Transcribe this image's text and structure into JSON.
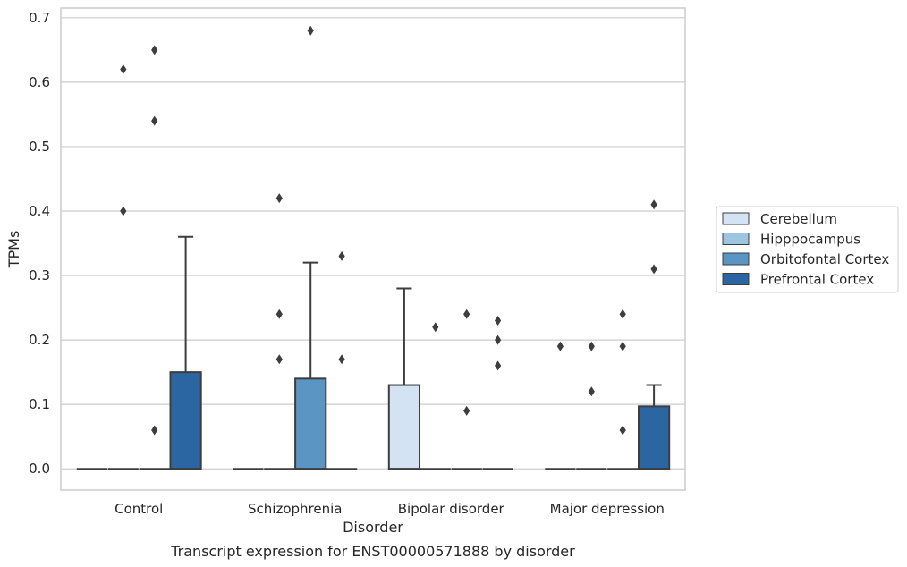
{
  "chart_data": {
    "type": "box",
    "title": "",
    "caption": "Transcript expression for ENST00000571888 by disorder",
    "xlabel": "Disorder",
    "ylabel": "TPMs",
    "ylim": [
      -0.033,
      0.715
    ],
    "yticks": [
      0.0,
      0.1,
      0.2,
      0.3,
      0.4,
      0.5,
      0.6,
      0.7
    ],
    "ytick_labels": [
      "0.0",
      "0.1",
      "0.2",
      "0.3",
      "0.4",
      "0.5",
      "0.6",
      "0.7"
    ],
    "grid": "horizontal",
    "legend_position": "right",
    "categories": [
      "Control",
      "Schizophrenia",
      "Bipolar disorder",
      "Major depression"
    ],
    "series": [
      {
        "name": "Cerebellum",
        "color": "#d4e3f3",
        "boxes": [
          {
            "q1": 0,
            "median": 0,
            "q3": 0,
            "whisker_low": 0,
            "whisker_high": 0,
            "outliers": []
          },
          {
            "q1": 0,
            "median": 0,
            "q3": 0,
            "whisker_low": 0,
            "whisker_high": 0,
            "outliers": []
          },
          {
            "q1": 0,
            "median": 0,
            "q3": 0.13,
            "whisker_low": 0,
            "whisker_high": 0.28,
            "outliers": []
          },
          {
            "q1": 0,
            "median": 0,
            "q3": 0,
            "whisker_low": 0,
            "whisker_high": 0,
            "outliers": [
              0.19
            ]
          }
        ]
      },
      {
        "name": "Hipppocampus",
        "color": "#9cc5e0",
        "boxes": [
          {
            "q1": 0,
            "median": 0,
            "q3": 0,
            "whisker_low": 0,
            "whisker_high": 0,
            "outliers": [
              0.4,
              0.62
            ]
          },
          {
            "q1": 0,
            "median": 0,
            "q3": 0,
            "whisker_low": 0,
            "whisker_high": 0,
            "outliers": [
              0.17,
              0.24,
              0.42
            ]
          },
          {
            "q1": 0,
            "median": 0,
            "q3": 0,
            "whisker_low": 0,
            "whisker_high": 0,
            "outliers": [
              0.22
            ]
          },
          {
            "q1": 0,
            "median": 0,
            "q3": 0,
            "whisker_low": 0,
            "whisker_high": 0,
            "outliers": [
              0.12,
              0.19
            ]
          }
        ]
      },
      {
        "name": "Orbitofontal Cortex",
        "color": "#5a95c3",
        "boxes": [
          {
            "q1": 0,
            "median": 0,
            "q3": 0,
            "whisker_low": 0,
            "whisker_high": 0,
            "outliers": [
              0.06,
              0.54,
              0.65
            ]
          },
          {
            "q1": 0,
            "median": 0,
            "q3": 0.14,
            "whisker_low": 0,
            "whisker_high": 0.32,
            "outliers": [
              0.68
            ]
          },
          {
            "q1": 0,
            "median": 0,
            "q3": 0,
            "whisker_low": 0,
            "whisker_high": 0,
            "outliers": [
              0.09,
              0.24
            ]
          },
          {
            "q1": 0,
            "median": 0,
            "q3": 0,
            "whisker_low": 0,
            "whisker_high": 0,
            "outliers": [
              0.06,
              0.19,
              0.24
            ]
          }
        ]
      },
      {
        "name": "Prefrontal Cortex",
        "color": "#2b66a3",
        "boxes": [
          {
            "q1": 0,
            "median": 0,
            "q3": 0.15,
            "whisker_low": 0,
            "whisker_high": 0.36,
            "outliers": []
          },
          {
            "q1": 0,
            "median": 0,
            "q3": 0,
            "whisker_low": 0,
            "whisker_high": 0,
            "outliers": [
              0.17,
              0.33
            ]
          },
          {
            "q1": 0,
            "median": 0,
            "q3": 0,
            "whisker_low": 0,
            "whisker_high": 0,
            "outliers": [
              0.16,
              0.2,
              0.23
            ]
          },
          {
            "q1": 0,
            "median": 0,
            "q3": 0.097,
            "whisker_low": 0,
            "whisker_high": 0.13,
            "outliers": [
              0.31,
              0.41
            ]
          }
        ]
      }
    ]
  }
}
